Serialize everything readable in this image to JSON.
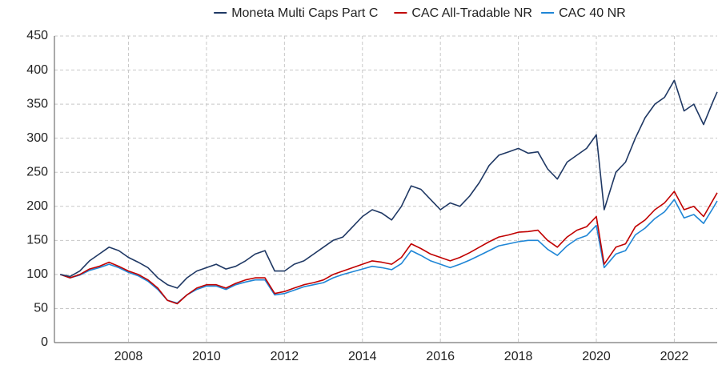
{
  "chart_data": {
    "type": "line",
    "x": [
      2006.25,
      2006.5,
      2006.75,
      2007,
      2007.25,
      2007.5,
      2007.75,
      2008,
      2008.25,
      2008.5,
      2008.75,
      2009,
      2009.25,
      2009.5,
      2009.75,
      2010,
      2010.25,
      2010.5,
      2010.75,
      2011,
      2011.25,
      2011.5,
      2011.75,
      2012,
      2012.25,
      2012.5,
      2012.75,
      2013,
      2013.25,
      2013.5,
      2013.75,
      2014,
      2014.25,
      2014.5,
      2014.75,
      2015,
      2015.25,
      2015.5,
      2015.75,
      2016,
      2016.25,
      2016.5,
      2016.75,
      2017,
      2017.25,
      2017.5,
      2017.75,
      2018,
      2018.25,
      2018.5,
      2018.75,
      2019,
      2019.25,
      2019.5,
      2019.75,
      2020,
      2020.2,
      2020.5,
      2020.75,
      2021,
      2021.25,
      2021.5,
      2021.75,
      2022,
      2022.25,
      2022.5,
      2022.75,
      2023,
      2023.1
    ],
    "series": [
      {
        "name": "Moneta Multi Caps Part C",
        "color": "#1f3864",
        "values": [
          100,
          97,
          105,
          120,
          130,
          140,
          135,
          125,
          118,
          110,
          95,
          85,
          80,
          95,
          105,
          110,
          115,
          108,
          112,
          120,
          130,
          135,
          105,
          105,
          115,
          120,
          130,
          140,
          150,
          155,
          170,
          185,
          195,
          190,
          180,
          200,
          230,
          225,
          210,
          195,
          205,
          200,
          215,
          235,
          260,
          275,
          280,
          285,
          278,
          280,
          255,
          240,
          265,
          275,
          285,
          305,
          195,
          250,
          265,
          300,
          330,
          350,
          360,
          385,
          340,
          350,
          320,
          355,
          368
        ]
      },
      {
        "name": "CAC All-Tradable NR",
        "color": "#c00000",
        "values": [
          100,
          95,
          100,
          108,
          112,
          118,
          112,
          105,
          100,
          92,
          80,
          62,
          57,
          70,
          80,
          85,
          85,
          80,
          87,
          92,
          95,
          95,
          72,
          75,
          80,
          85,
          88,
          92,
          100,
          105,
          110,
          115,
          120,
          118,
          115,
          125,
          145,
          138,
          130,
          125,
          120,
          125,
          132,
          140,
          148,
          155,
          158,
          162,
          163,
          165,
          150,
          140,
          155,
          165,
          170,
          185,
          115,
          140,
          145,
          170,
          180,
          195,
          205,
          222,
          195,
          200,
          185,
          210,
          220
        ]
      },
      {
        "name": "CAC 40 NR",
        "color": "#1f86d6",
        "values": [
          100,
          95,
          99,
          106,
          110,
          115,
          110,
          103,
          98,
          90,
          78,
          62,
          58,
          70,
          78,
          83,
          83,
          78,
          85,
          89,
          92,
          92,
          70,
          72,
          77,
          82,
          85,
          88,
          95,
          100,
          104,
          108,
          112,
          110,
          107,
          116,
          135,
          128,
          120,
          115,
          110,
          115,
          121,
          128,
          135,
          142,
          145,
          148,
          150,
          150,
          137,
          128,
          142,
          152,
          157,
          172,
          110,
          130,
          135,
          158,
          168,
          182,
          192,
          210,
          183,
          188,
          175,
          198,
          208
        ]
      }
    ],
    "xlim": [
      2006.1,
      2023.1
    ],
    "xticks": [
      2008,
      2010,
      2012,
      2014,
      2016,
      2018,
      2020,
      2022
    ],
    "ylim": [
      0,
      450
    ],
    "yticks": [
      0,
      50,
      100,
      150,
      200,
      250,
      300,
      350,
      400,
      450
    ],
    "grid": true,
    "legend": "top"
  }
}
